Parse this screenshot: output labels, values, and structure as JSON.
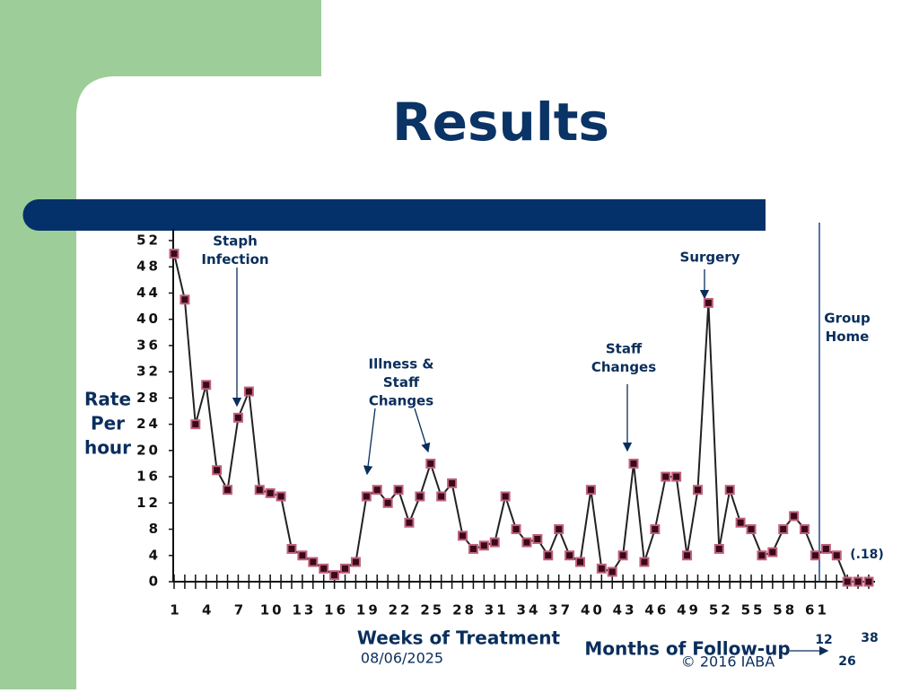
{
  "title": "Results",
  "footer": {
    "date": "08/06/2025",
    "copyright": "© 2016 IABA"
  },
  "chart_data": {
    "type": "line",
    "y_label": [
      "Rate",
      "Per",
      "hour"
    ],
    "x_label": "Weeks of Treatment",
    "followup_label": "Months of Follow-up",
    "followup_ticks": [
      "12",
      "26",
      "38"
    ],
    "end_label": "(.18)",
    "annotations": [
      {
        "lines": [
          "Staph",
          "Infection"
        ]
      },
      {
        "lines": [
          "Illness &",
          "Staff",
          "Changes"
        ]
      },
      {
        "lines": [
          "Staff",
          "Changes"
        ]
      },
      {
        "lines": [
          "Surgery"
        ]
      },
      {
        "lines": [
          "Group",
          "Home"
        ]
      }
    ],
    "x": [
      1,
      2,
      3,
      4,
      5,
      6,
      7,
      8,
      9,
      10,
      11,
      12,
      13,
      14,
      15,
      16,
      17,
      18,
      19,
      20,
      21,
      22,
      23,
      24,
      25,
      26,
      27,
      28,
      29,
      30,
      31,
      32,
      33,
      34,
      35,
      36,
      37,
      38,
      39,
      40,
      41,
      42,
      43,
      44,
      45,
      46,
      47,
      48,
      49,
      50,
      51,
      52,
      53,
      54,
      55,
      56,
      57,
      58,
      59,
      60,
      61,
      62,
      63,
      64,
      65,
      66
    ],
    "series": [
      {
        "color": "#222222",
        "marker_fill": "#3a0a14",
        "marker_edge": "#c06080",
        "values": [
          50,
          43,
          24,
          30,
          17,
          14,
          25,
          29,
          14,
          13.5,
          13,
          5,
          4,
          3,
          2,
          1,
          2,
          3,
          13,
          14,
          12,
          14,
          9,
          13,
          18,
          13,
          15,
          7,
          5,
          5.5,
          6,
          13,
          8,
          6,
          6.5,
          4,
          8,
          4,
          3,
          14,
          2,
          1.5,
          4,
          18,
          3,
          8,
          16,
          16,
          4,
          14,
          42.5,
          5,
          14,
          9,
          8,
          4,
          4.5,
          8,
          10,
          8,
          4,
          5,
          4,
          0,
          0,
          0
        ]
      }
    ],
    "xlim": [
      1,
      66
    ],
    "xticks": [
      1,
      4,
      7,
      10,
      13,
      16,
      19,
      22,
      25,
      28,
      31,
      34,
      37,
      40,
      43,
      46,
      49,
      52,
      55,
      58,
      61
    ],
    "ylim": [
      0,
      52
    ],
    "yticks": [
      0,
      4,
      8,
      12,
      16,
      20,
      24,
      28,
      32,
      36,
      40,
      44,
      48,
      52
    ]
  }
}
